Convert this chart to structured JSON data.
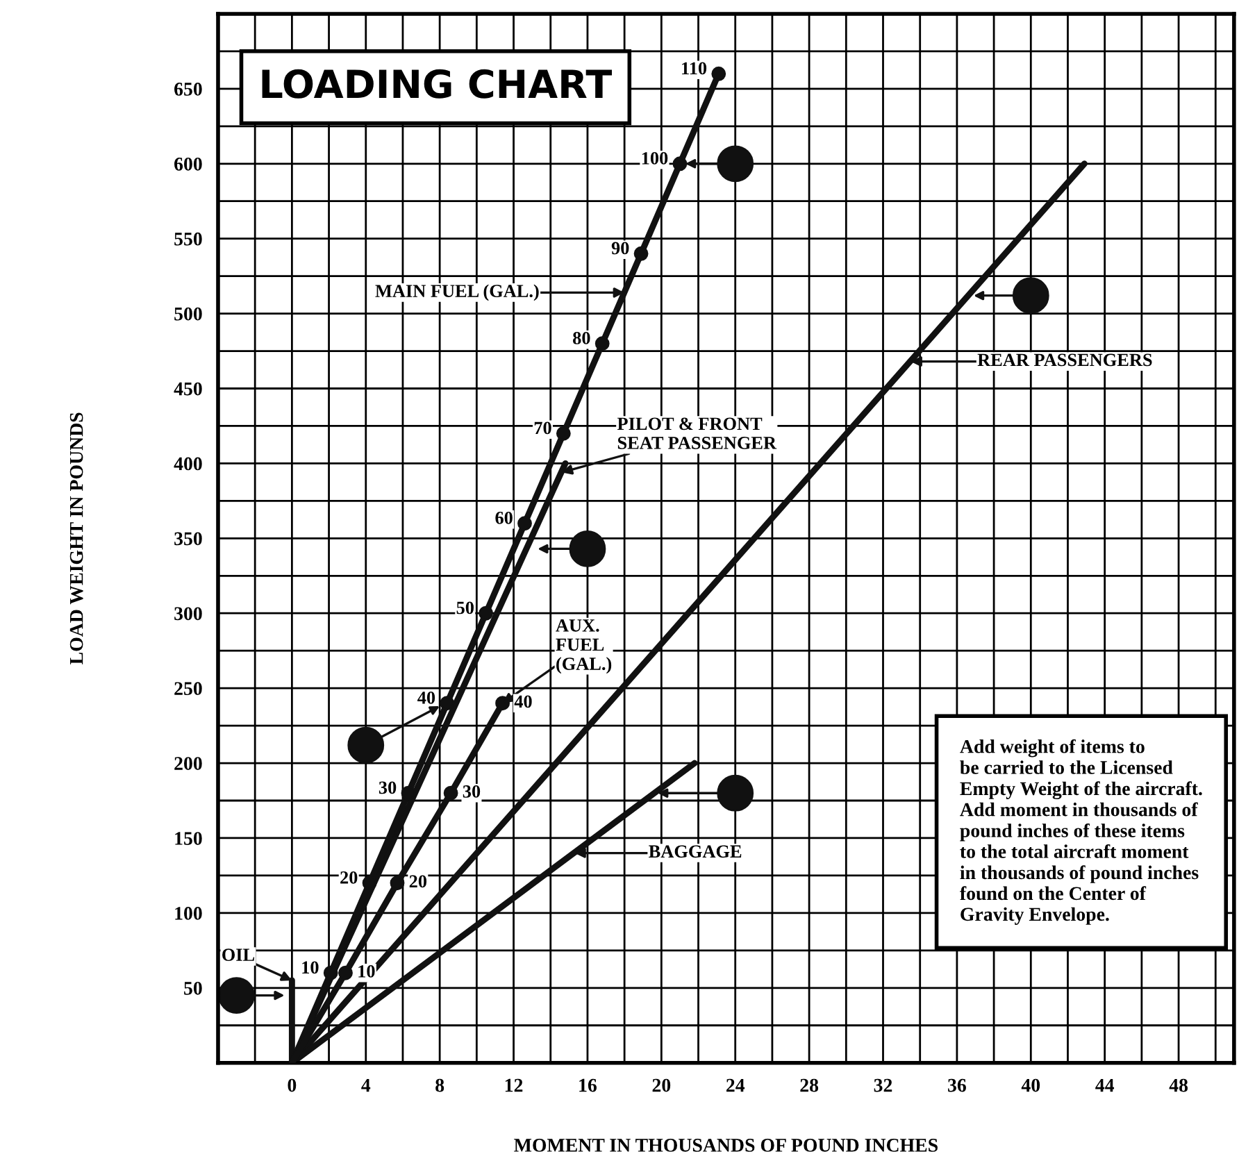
{
  "chart_data": {
    "type": "line",
    "title": "LOADING CHART",
    "xlabel": "MOMENT IN THOUSANDS OF POUND INCHES",
    "ylabel": "LOAD WEIGHT IN POUNDS",
    "series": [
      {
        "color": "#111111",
        "marker": "circle",
        "x": [
          0,
          2.1,
          4.2,
          6.3,
          8.4,
          10.5,
          12.6,
          14.7,
          16.8,
          18.9,
          21.0,
          23.1
        ],
        "values": [
          0,
          60,
          120,
          180,
          240,
          300,
          360,
          420,
          480,
          540,
          600,
          660
        ]
      },
      {
        "color": "#111111",
        "marker": "circle",
        "x": [
          0,
          2.9,
          5.7,
          8.6,
          11.4
        ],
        "values": [
          0,
          60,
          120,
          180,
          240
        ]
      },
      {
        "color": "#111111",
        "marker": "none",
        "x": [
          0,
          14.8
        ],
        "values": [
          0,
          400
        ]
      },
      {
        "color": "#111111",
        "marker": "none",
        "x": [
          0,
          42.9
        ],
        "values": [
          0,
          600
        ]
      },
      {
        "color": "#111111",
        "marker": "none",
        "x": [
          0,
          21.8
        ],
        "values": [
          0,
          200
        ]
      },
      {
        "color": "#111111",
        "marker": "none",
        "x": [
          0,
          0
        ],
        "values": [
          0,
          55
        ]
      }
    ],
    "annotations": [
      "MAIN FUEL (GAL.)",
      {
        "text": "AUX.\nFUEL\n(GAL.)",
        "x": 11.4,
        "y": 240
      },
      {
        "text": "PILOT & FRONT\nSEAT PASSENGER",
        "x": 14.6,
        "y": 394
      },
      "REAR PASSENGERS",
      "BAGGAGE",
      {
        "text": "OIL",
        "x": 0,
        "y": 55
      },
      {
        "text": "10",
        "x": 2.1,
        "y": 60
      },
      {
        "text": "20",
        "x": 4.2,
        "y": 120
      },
      {
        "text": "30",
        "x": 6.3,
        "y": 180
      },
      {
        "text": "40",
        "x": 8.4,
        "y": 240
      },
      {
        "text": "50",
        "x": 10.5,
        "y": 300
      },
      {
        "text": "60",
        "x": 12.6,
        "y": 360
      },
      {
        "text": "70",
        "x": 14.7,
        "y": 420
      },
      {
        "text": "80",
        "x": 16.8,
        "y": 480
      },
      {
        "text": "90",
        "x": 18.9,
        "y": 540
      },
      {
        "text": "100",
        "x": 21.0,
        "y": 600
      },
      {
        "text": "110",
        "x": 23.1,
        "y": 660
      },
      {
        "text": "10",
        "x": 2.9,
        "y": 60
      },
      {
        "text": "20",
        "x": 5.7,
        "y": 120
      },
      {
        "text": "30",
        "x": 8.6,
        "y": 180
      },
      {
        "text": "40",
        "x": 11.4,
        "y": 240
      },
      "Add weight of items to\nbe carried to the Licensed\nEmpty Weight of the aircraft.\nAdd moment in thousands of\npound inches of these items\nto the total aircraft moment\nin thousands of pound inches\nfound on the Center of\nGravity Envelope."
    ],
    "xlim": [
      -4,
      51
    ],
    "xticks": [
      {
        "value": -4,
        "label": null
      },
      {
        "value": -2,
        "label": null
      },
      0,
      {
        "value": 2,
        "label": null
      },
      4,
      {
        "value": 6,
        "label": null
      },
      8,
      {
        "value": 10,
        "label": null
      },
      12,
      {
        "value": 14,
        "label": null
      },
      16,
      {
        "value": 18,
        "label": null
      },
      20,
      {
        "value": 22,
        "label": null
      },
      24,
      {
        "value": 26,
        "label": null
      },
      28,
      {
        "value": 30,
        "label": null
      },
      32,
      {
        "value": 34,
        "label": null
      },
      36,
      {
        "value": 38,
        "label": null
      },
      40,
      {
        "value": 42,
        "label": null
      },
      44,
      {
        "value": 46,
        "label": null
      },
      48,
      {
        "value": 50,
        "label": null
      }
    ],
    "ylim": [
      0,
      700
    ],
    "yticks": [
      {
        "value": 0,
        "label": null
      },
      {
        "value": 25,
        "label": null
      },
      50,
      {
        "value": 75,
        "label": null
      },
      100,
      {
        "value": 125,
        "label": null
      },
      150,
      {
        "value": 175,
        "label": null
      },
      200,
      {
        "value": 225,
        "label": null
      },
      250,
      {
        "value": 275,
        "label": null
      },
      300,
      {
        "value": 325,
        "label": null
      },
      350,
      {
        "value": 375,
        "label": null
      },
      400,
      {
        "value": 425,
        "label": null
      },
      450,
      {
        "value": 475,
        "label": null
      },
      500,
      {
        "value": 525,
        "label": null
      },
      550,
      {
        "value": 575,
        "label": null
      },
      600,
      {
        "value": 625,
        "label": null
      },
      650,
      {
        "value": 675,
        "label": null
      },
      {
        "value": 700,
        "label": null
      }
    ],
    "grid": true,
    "line_style": "solid"
  }
}
